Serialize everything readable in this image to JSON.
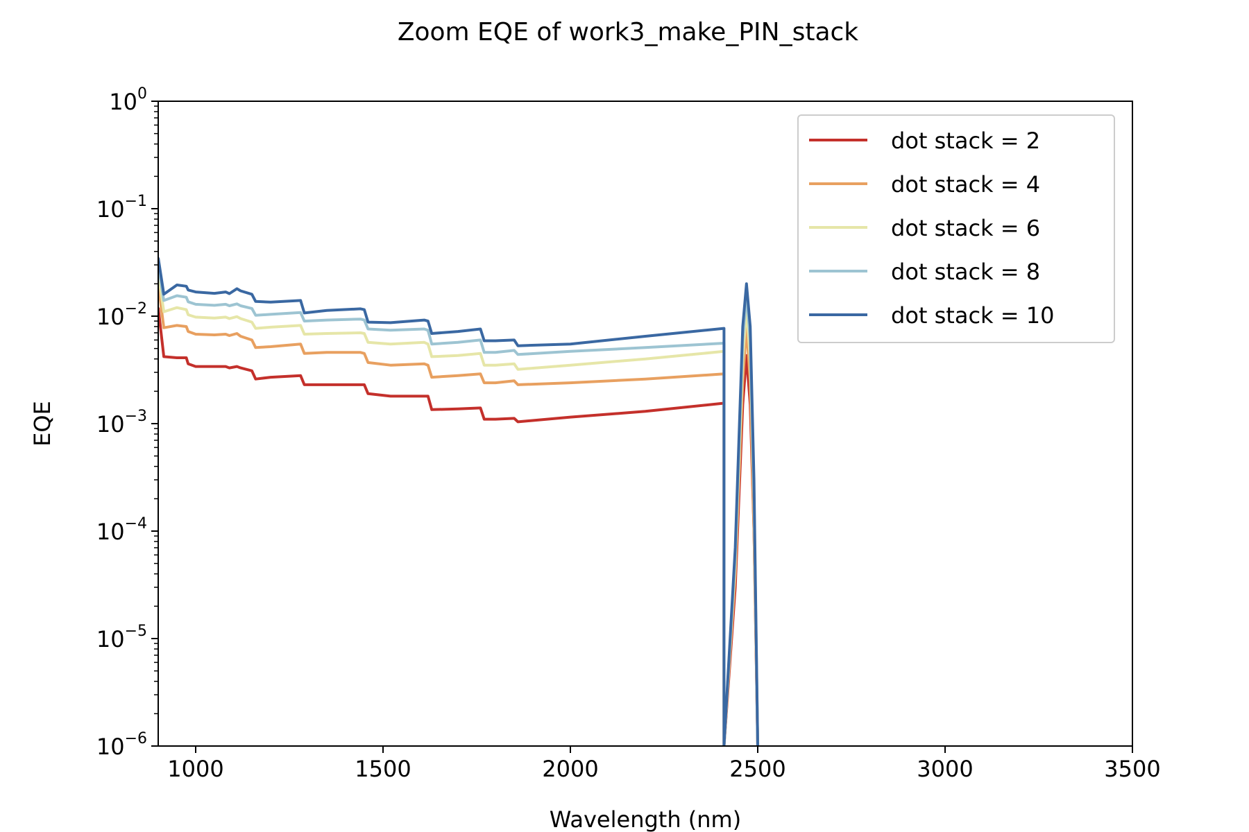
{
  "chart_data": {
    "type": "line",
    "title": "Zoom EQE of work3_make_PIN_stack",
    "xlabel": "Wavelength (nm)",
    "ylabel": "EQE",
    "xlim": [
      900,
      3500
    ],
    "ylim": [
      1e-06,
      1
    ],
    "yscale": "log",
    "grid": false,
    "legend_position": "top-right",
    "x_ticks": [
      {
        "value": 1000,
        "label": "1000"
      },
      {
        "value": 1500,
        "label": "1500"
      },
      {
        "value": 2000,
        "label": "2000"
      },
      {
        "value": 2500,
        "label": "2500"
      },
      {
        "value": 3000,
        "label": "3000"
      },
      {
        "value": 3500,
        "label": "3500"
      }
    ],
    "y_ticks": [
      {
        "value": 1e-06,
        "base": "10",
        "exp": "−6"
      },
      {
        "value": 1e-05,
        "base": "10",
        "exp": "−5"
      },
      {
        "value": 0.0001,
        "base": "10",
        "exp": "−4"
      },
      {
        "value": 0.001,
        "base": "10",
        "exp": "−3"
      },
      {
        "value": 0.01,
        "base": "10",
        "exp": "−2"
      },
      {
        "value": 0.1,
        "base": "10",
        "exp": "−1"
      },
      {
        "value": 1,
        "base": "10",
        "exp": "0"
      }
    ],
    "series": [
      {
        "name": "dot stack = 2",
        "color": "#c4302b",
        "x": [
          900,
          915,
          950,
          975,
          980,
          1000,
          1050,
          1080,
          1090,
          1110,
          1120,
          1150,
          1160,
          1200,
          1280,
          1290,
          1350,
          1440,
          1450,
          1460,
          1520,
          1610,
          1620,
          1630,
          1700,
          1760,
          1770,
          1800,
          1850,
          1860,
          2000,
          2200,
          2410,
          2410,
          2440,
          2460,
          2470,
          2480,
          2490,
          2500
        ],
        "values": [
          0.012,
          0.0042,
          0.0041,
          0.0041,
          0.0036,
          0.0034,
          0.0034,
          0.0034,
          0.0033,
          0.0034,
          0.0033,
          0.0031,
          0.0026,
          0.0027,
          0.0028,
          0.0023,
          0.0023,
          0.0023,
          0.0023,
          0.0019,
          0.0018,
          0.0018,
          0.0018,
          0.00135,
          0.00137,
          0.0014,
          0.0011,
          0.0011,
          0.00112,
          0.00104,
          0.00115,
          0.0013,
          0.00155,
          1e-06,
          3e-05,
          0.0015,
          0.0043,
          0.0015,
          0.0001,
          1e-06
        ]
      },
      {
        "name": "dot stack = 4",
        "color": "#e8a060",
        "x": [
          900,
          915,
          950,
          975,
          980,
          1000,
          1050,
          1080,
          1090,
          1110,
          1120,
          1150,
          1160,
          1200,
          1280,
          1290,
          1350,
          1440,
          1450,
          1460,
          1520,
          1610,
          1620,
          1630,
          1700,
          1760,
          1770,
          1800,
          1850,
          1860,
          2000,
          2200,
          2410,
          2410,
          2440,
          2460,
          2470,
          2480,
          2490,
          2500
        ],
        "values": [
          0.02,
          0.0078,
          0.0082,
          0.008,
          0.0072,
          0.0068,
          0.0067,
          0.0068,
          0.0066,
          0.0069,
          0.0065,
          0.006,
          0.0051,
          0.0052,
          0.0055,
          0.0045,
          0.0046,
          0.0046,
          0.0045,
          0.0037,
          0.0035,
          0.0036,
          0.0035,
          0.0027,
          0.0028,
          0.0029,
          0.0024,
          0.0024,
          0.0025,
          0.0023,
          0.0024,
          0.0026,
          0.0029,
          1e-06,
          4e-05,
          0.0025,
          0.0078,
          0.0025,
          0.0001,
          1e-06
        ]
      },
      {
        "name": "dot stack = 6",
        "color": "#e6e6a8",
        "x": [
          900,
          915,
          950,
          975,
          980,
          1000,
          1050,
          1080,
          1090,
          1110,
          1120,
          1150,
          1160,
          1200,
          1280,
          1290,
          1350,
          1440,
          1450,
          1460,
          1520,
          1610,
          1620,
          1630,
          1700,
          1760,
          1770,
          1800,
          1850,
          1860,
          2000,
          2200,
          2410,
          2410,
          2440,
          2460,
          2470,
          2480,
          2490,
          2500
        ],
        "values": [
          0.025,
          0.011,
          0.012,
          0.0115,
          0.0103,
          0.0098,
          0.0096,
          0.0098,
          0.0095,
          0.0099,
          0.0095,
          0.0088,
          0.0077,
          0.0079,
          0.0082,
          0.0068,
          0.0069,
          0.007,
          0.0069,
          0.0057,
          0.0055,
          0.0057,
          0.0055,
          0.0042,
          0.0043,
          0.0045,
          0.0035,
          0.0035,
          0.0036,
          0.0032,
          0.0035,
          0.004,
          0.0047,
          1e-06,
          5e-05,
          0.004,
          0.012,
          0.004,
          0.0002,
          1e-06
        ]
      },
      {
        "name": "dot stack = 8",
        "color": "#9dc4d2",
        "x": [
          900,
          915,
          950,
          975,
          980,
          1000,
          1050,
          1080,
          1090,
          1110,
          1120,
          1150,
          1160,
          1200,
          1280,
          1290,
          1350,
          1440,
          1450,
          1460,
          1520,
          1610,
          1620,
          1630,
          1700,
          1760,
          1770,
          1800,
          1850,
          1860,
          2000,
          2200,
          2410,
          2410,
          2440,
          2460,
          2470,
          2480,
          2490,
          2500
        ],
        "values": [
          0.03,
          0.014,
          0.0155,
          0.015,
          0.0136,
          0.0129,
          0.0126,
          0.0129,
          0.0125,
          0.013,
          0.0125,
          0.0118,
          0.0102,
          0.0104,
          0.0108,
          0.009,
          0.0092,
          0.0094,
          0.0092,
          0.0076,
          0.0074,
          0.0076,
          0.0074,
          0.0055,
          0.0057,
          0.006,
          0.0046,
          0.0046,
          0.0048,
          0.0044,
          0.0047,
          0.0051,
          0.0056,
          1e-06,
          6e-05,
          0.006,
          0.016,
          0.006,
          0.0002,
          1e-06
        ]
      },
      {
        "name": "dot stack = 10",
        "color": "#3a68a2",
        "x": [
          900,
          915,
          950,
          975,
          980,
          1000,
          1050,
          1080,
          1090,
          1110,
          1120,
          1150,
          1160,
          1200,
          1280,
          1290,
          1350,
          1440,
          1450,
          1460,
          1520,
          1610,
          1620,
          1630,
          1700,
          1760,
          1770,
          1800,
          1850,
          1860,
          2000,
          2200,
          2410,
          2410,
          2440,
          2460,
          2470,
          2480,
          2490,
          2500
        ],
        "values": [
          0.035,
          0.016,
          0.0195,
          0.019,
          0.0175,
          0.0168,
          0.0163,
          0.0168,
          0.0162,
          0.018,
          0.0172,
          0.016,
          0.0137,
          0.0135,
          0.014,
          0.0107,
          0.0113,
          0.0117,
          0.0115,
          0.0088,
          0.0087,
          0.0092,
          0.009,
          0.0069,
          0.0072,
          0.0076,
          0.0059,
          0.0059,
          0.006,
          0.0053,
          0.0055,
          0.0065,
          0.0077,
          1e-06,
          7e-05,
          0.008,
          0.02,
          0.008,
          0.0003,
          1e-06
        ]
      }
    ]
  }
}
